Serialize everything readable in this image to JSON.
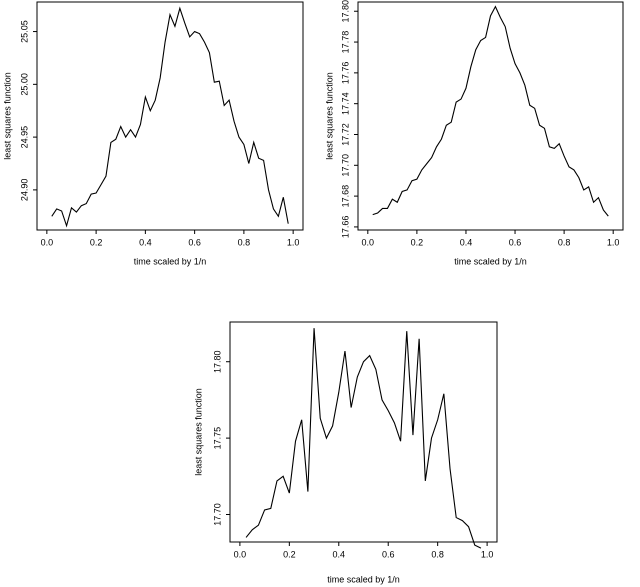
{
  "chart_data": [
    {
      "type": "line",
      "x_label": "time scaled by 1/n",
      "y_label": "least squares function",
      "color": "#000000",
      "x": [
        0.02,
        0.04,
        0.06,
        0.08,
        0.1,
        0.12,
        0.14,
        0.16,
        0.18,
        0.2,
        0.22,
        0.24,
        0.26,
        0.28,
        0.3,
        0.32,
        0.34,
        0.36,
        0.38,
        0.4,
        0.42,
        0.44,
        0.46,
        0.48,
        0.5,
        0.52,
        0.54,
        0.56,
        0.58,
        0.6,
        0.62,
        0.64,
        0.66,
        0.68,
        0.7,
        0.72,
        0.74,
        0.76,
        0.78,
        0.8,
        0.82,
        0.84,
        0.86,
        0.88,
        0.9,
        0.92,
        0.94,
        0.96,
        0.98
      ],
      "values": [
        24.875,
        24.882,
        24.88,
        24.866,
        24.883,
        24.879,
        24.885,
        24.887,
        24.896,
        24.897,
        24.905,
        24.913,
        24.945,
        24.948,
        24.96,
        24.95,
        24.957,
        24.95,
        24.962,
        24.988,
        24.975,
        24.985,
        25.006,
        25.04,
        25.066,
        25.055,
        25.072,
        25.058,
        25.045,
        25.05,
        25.048,
        25.04,
        25.03,
        25.002,
        25.003,
        24.98,
        24.985,
        24.965,
        24.95,
        24.943,
        24.925,
        24.945,
        24.93,
        24.928,
        24.9,
        24.882,
        24.875,
        24.893,
        24.868
      ],
      "xlim": [
        -0.04,
        1.04
      ],
      "ylim": [
        24.862,
        25.078
      ],
      "xticks": [
        {
          "value": 0,
          "label": "0.0"
        },
        0.2,
        0.4,
        0.6,
        0.8,
        {
          "value": 1,
          "label": "1.0"
        }
      ],
      "yticks": [
        {
          "value": 24.9,
          "label": "24.90"
        },
        24.95,
        {
          "value": 25,
          "label": "25.00"
        },
        25.05
      ]
    },
    {
      "type": "line",
      "x_label": "time scaled by 1/n",
      "y_label": "least squares function",
      "color": "#000000",
      "x": [
        0.02,
        0.04,
        0.06,
        0.08,
        0.1,
        0.12,
        0.14,
        0.16,
        0.18,
        0.2,
        0.22,
        0.24,
        0.26,
        0.28,
        0.3,
        0.32,
        0.34,
        0.36,
        0.38,
        0.4,
        0.42,
        0.44,
        0.46,
        0.48,
        0.5,
        0.52,
        0.54,
        0.56,
        0.58,
        0.6,
        0.62,
        0.64,
        0.66,
        0.68,
        0.7,
        0.72,
        0.74,
        0.76,
        0.78,
        0.8,
        0.82,
        0.84,
        0.86,
        0.88,
        0.9,
        0.92,
        0.94,
        0.96,
        0.98
      ],
      "values": [
        17.668,
        17.669,
        17.672,
        17.672,
        17.678,
        17.676,
        17.683,
        17.684,
        17.69,
        17.691,
        17.697,
        17.701,
        17.705,
        17.712,
        17.717,
        17.726,
        17.728,
        17.741,
        17.743,
        17.75,
        17.764,
        17.775,
        17.781,
        17.783,
        17.797,
        17.803,
        17.796,
        17.79,
        17.776,
        17.766,
        17.76,
        17.752,
        17.739,
        17.737,
        17.726,
        17.724,
        17.712,
        17.711,
        17.714,
        17.706,
        17.699,
        17.697,
        17.692,
        17.684,
        17.686,
        17.676,
        17.679,
        17.671,
        17.667
      ],
      "xlim": [
        -0.04,
        1.04
      ],
      "ylim": [
        17.658,
        17.806
      ],
      "xticks": [
        {
          "value": 0,
          "label": "0.0"
        },
        0.2,
        0.4,
        0.6,
        0.8,
        {
          "value": 1,
          "label": "1.0"
        }
      ],
      "yticks": [
        17.66,
        17.68,
        {
          "value": 17.7,
          "label": "17.70"
        },
        17.72,
        17.74,
        17.76,
        17.78,
        {
          "value": 17.8,
          "label": "17.80"
        }
      ]
    },
    {
      "type": "line",
      "x_label": "time scaled by 1/n",
      "y_label": "least squares function",
      "color": "#000000",
      "x": [
        0.025,
        0.05,
        0.075,
        0.1,
        0.125,
        0.15,
        0.175,
        0.2,
        0.225,
        0.25,
        0.275,
        0.3,
        0.325,
        0.35,
        0.375,
        0.4,
        0.425,
        0.45,
        0.475,
        0.5,
        0.525,
        0.55,
        0.575,
        0.6,
        0.625,
        0.65,
        0.675,
        0.7,
        0.725,
        0.75,
        0.775,
        0.8,
        0.825,
        0.85,
        0.875,
        0.9,
        0.925,
        0.95,
        0.975
      ],
      "values": [
        17.685,
        17.69,
        17.693,
        17.703,
        17.704,
        17.722,
        17.725,
        17.714,
        17.748,
        17.762,
        17.715,
        17.822,
        17.763,
        17.75,
        17.758,
        17.78,
        17.807,
        17.77,
        17.79,
        17.8,
        17.804,
        17.795,
        17.775,
        17.768,
        17.76,
        17.748,
        17.82,
        17.752,
        17.815,
        17.722,
        17.75,
        17.762,
        17.779,
        17.73,
        17.698,
        17.696,
        17.692,
        17.68,
        17.678
      ],
      "xlim": [
        -0.04,
        1.04
      ],
      "ylim": [
        17.682,
        17.826
      ],
      "xticks": [
        {
          "value": 0,
          "label": "0.0"
        },
        0.2,
        0.4,
        0.6,
        0.8,
        {
          "value": 1,
          "label": "1.0"
        }
      ],
      "yticks": [
        {
          "value": 17.7,
          "label": "17.70"
        },
        17.75,
        {
          "value": 17.8,
          "label": "17.80"
        }
      ]
    }
  ]
}
